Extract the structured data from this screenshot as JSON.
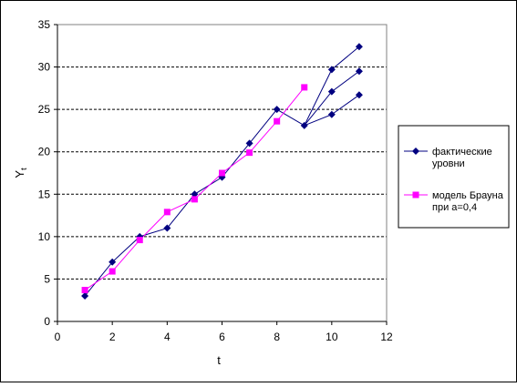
{
  "chart_data": {
    "type": "line",
    "xlabel": "t",
    "ylabel": "Y",
    "ylabel_sub": "t",
    "xlim": [
      0,
      12
    ],
    "ylim": [
      0,
      35
    ],
    "xticks": [
      0,
      2,
      4,
      6,
      8,
      10,
      12
    ],
    "yticks": [
      0,
      5,
      10,
      15,
      20,
      25,
      30,
      35
    ],
    "grid": "horizontal-dashed",
    "legend_position": "right",
    "series": [
      {
        "name": "фактические уровни",
        "legend_lines": [
          "фактические",
          "уровни"
        ],
        "color": "#000080",
        "marker": "diamond",
        "points": [
          [
            1,
            3
          ],
          [
            2,
            7
          ],
          [
            3,
            10
          ],
          [
            4,
            11
          ],
          [
            5,
            15
          ],
          [
            6,
            17
          ],
          [
            7,
            21
          ],
          [
            8,
            25
          ],
          [
            9,
            23.1
          ]
        ]
      },
      {
        "name": "модель Брауна при а=0,4",
        "legend_lines": [
          "модель Брауна",
          "при а=0,4"
        ],
        "color": "#FF00FF",
        "marker": "square",
        "points": [
          [
            1,
            3.7
          ],
          [
            2,
            5.9
          ],
          [
            3,
            9.6
          ],
          [
            4,
            12.9
          ],
          [
            5,
            14.4
          ],
          [
            6,
            17.5
          ],
          [
            7,
            19.9
          ],
          [
            8,
            23.6
          ],
          [
            9,
            27.6
          ]
        ]
      }
    ],
    "forecast_branches": {
      "color": "#000080",
      "marker": "diamond",
      "lines": [
        [
          [
            9,
            23.1
          ],
          [
            10,
            29.7
          ],
          [
            11,
            32.4
          ]
        ],
        [
          [
            9,
            23.1
          ],
          [
            10,
            27.1
          ],
          [
            11,
            29.5
          ]
        ],
        [
          [
            9,
            23.1
          ],
          [
            10,
            24.4
          ],
          [
            11,
            26.7
          ]
        ]
      ]
    }
  }
}
